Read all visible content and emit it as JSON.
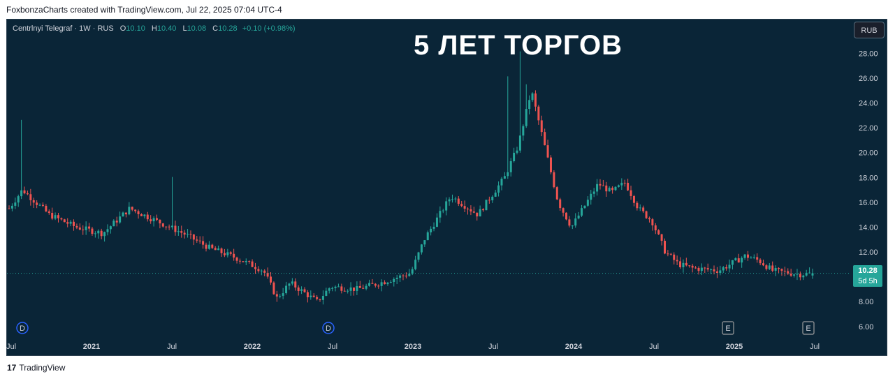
{
  "header": {
    "text": "FoxbonzaCharts created with TradingView.com, Jul 22, 2025 07:04 UTC-4"
  },
  "legend": {
    "symbol": "Centrlnyi Telegraf · 1W · RUS",
    "o_label": "O",
    "o": "10.10",
    "h_label": "H",
    "h": "10.40",
    "l_label": "L",
    "l": "10.08",
    "c_label": "C",
    "c": "10.28",
    "change": "+0.10 (+0.98%)"
  },
  "title": "5 ЛЕТ ТОРГОВ",
  "currency_button": "RUB",
  "price_tag": {
    "price": "10.28",
    "countdown": "5d 5h"
  },
  "footer": {
    "logo": "17",
    "brand": "TradingView"
  },
  "colors": {
    "up": "#26a69a",
    "down": "#ef5350",
    "background": "#0a2537",
    "text": "#d1d4dc"
  },
  "chart_data": {
    "type": "candlestick",
    "title": "5 ЛЕТ ТОРГОВ",
    "ylim": [
      5.2,
      29.2
    ],
    "y_ticks": [
      "6.00",
      "8.00",
      "10.00",
      "12.00",
      "14.00",
      "16.00",
      "18.00",
      "20.00",
      "22.00",
      "24.00",
      "26.00",
      "28.00"
    ],
    "x_ticks": [
      "Jul",
      "2021",
      "Jul",
      "2022",
      "Jul",
      "2023",
      "Jul",
      "2024",
      "Jul",
      "2025",
      "Jul"
    ],
    "last_price": 10.28,
    "event_markers": [
      {
        "label": "D",
        "near": "Jul 2020"
      },
      {
        "label": "D",
        "near": "Jul 2022"
      },
      {
        "label": "E",
        "near": "2025"
      },
      {
        "label": "E",
        "near": "Jul 2025"
      }
    ],
    "anchors": [
      {
        "date": "2020-07",
        "price": 15.5
      },
      {
        "date": "2020-08",
        "price": 17.0
      },
      {
        "date": "2020-10",
        "price": 15.0
      },
      {
        "date": "2020-12",
        "price": 14.0
      },
      {
        "date": "2021-02",
        "price": 13.5
      },
      {
        "date": "2021-04",
        "price": 15.5
      },
      {
        "date": "2021-06",
        "price": 14.5
      },
      {
        "date": "2021-08",
        "price": 13.5
      },
      {
        "date": "2021-10",
        "price": 12.3
      },
      {
        "date": "2021-12",
        "price": 11.5
      },
      {
        "date": "2022-02",
        "price": 10.5
      },
      {
        "date": "2022-03",
        "price": 8.3
      },
      {
        "date": "2022-04",
        "price": 9.5
      },
      {
        "date": "2022-06",
        "price": 8.0
      },
      {
        "date": "2022-07",
        "price": 9.2
      },
      {
        "date": "2022-09",
        "price": 9.0
      },
      {
        "date": "2022-11",
        "price": 9.6
      },
      {
        "date": "2023-01",
        "price": 10.3
      },
      {
        "date": "2023-02",
        "price": 13.0
      },
      {
        "date": "2023-04",
        "price": 16.5
      },
      {
        "date": "2023-06",
        "price": 15.0
      },
      {
        "date": "2023-08",
        "price": 18.0
      },
      {
        "date": "2023-09",
        "price": 20.5
      },
      {
        "date": "2023-10",
        "price": 25.0
      },
      {
        "date": "2023-11",
        "price": 20.5
      },
      {
        "date": "2023-12",
        "price": 16.0
      },
      {
        "date": "2024-01",
        "price": 14.0
      },
      {
        "date": "2024-03",
        "price": 17.5
      },
      {
        "date": "2024-04",
        "price": 16.8
      },
      {
        "date": "2024-05",
        "price": 17.6
      },
      {
        "date": "2024-06",
        "price": 15.5
      },
      {
        "date": "2024-07",
        "price": 14.5
      },
      {
        "date": "2024-08",
        "price": 12.0
      },
      {
        "date": "2024-09",
        "price": 11.0
      },
      {
        "date": "2024-10",
        "price": 10.7
      },
      {
        "date": "2024-12",
        "price": 10.5
      },
      {
        "date": "2025-02",
        "price": 11.7
      },
      {
        "date": "2025-03",
        "price": 11.3
      },
      {
        "date": "2025-04",
        "price": 10.5
      },
      {
        "date": "2025-06",
        "price": 10.2
      },
      {
        "date": "2025-07",
        "price": 10.28
      }
    ]
  }
}
